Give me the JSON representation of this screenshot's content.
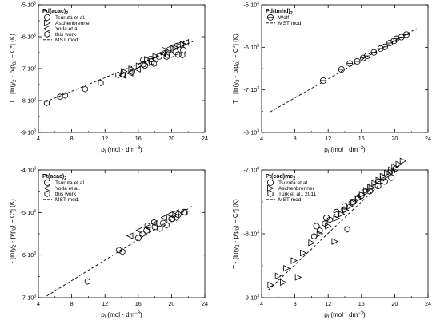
{
  "chart_data": [
    {
      "type": "scatter",
      "id": "pd-acac",
      "compound": "Pd(acac)",
      "compound_sub": "2",
      "xlim": [
        4,
        24
      ],
      "ylim": [
        -9000,
        -5000
      ],
      "xticks": [
        4,
        8,
        12,
        16,
        20,
        24
      ],
      "yticks": [
        -9000,
        -8000,
        -7000,
        -6000,
        -5000
      ],
      "ytick_labels": [
        "-9·10³",
        "-8·10³",
        "-7·10³",
        "-6·10³",
        "-5·10³"
      ],
      "legend_position": "top-left",
      "xlabel": "ρl (mol · dm⁻³)",
      "ylabel": "T · [ln(y2 · p/p0) − C*] (K)",
      "series": [
        {
          "name": "Tsuruta et al.",
          "marker": "circle",
          "points": [
            [
              16.6,
              -6730
            ],
            [
              17.5,
              -6700
            ],
            [
              18.5,
              -6620
            ],
            [
              19.5,
              -6560
            ],
            [
              20.5,
              -6480
            ],
            [
              21.4,
              -6420
            ],
            [
              20.8,
              -6560
            ],
            [
              16.8,
              -6900
            ],
            [
              17.6,
              -6780
            ]
          ]
        },
        {
          "name": "Aschenbrenner",
          "marker": "triangle-right",
          "points": [
            [
              14.3,
              -7090
            ],
            [
              15.2,
              -7010
            ],
            [
              16.1,
              -6920
            ],
            [
              17.1,
              -6710
            ],
            [
              18.1,
              -6610
            ],
            [
              19.2,
              -6420
            ],
            [
              20.5,
              -6350
            ],
            [
              21.4,
              -6250
            ]
          ]
        },
        {
          "name": "Yoda et al.",
          "marker": "triangle-left",
          "points": [
            [
              14.1,
              -7210
            ],
            [
              15.0,
              -7140
            ],
            [
              15.9,
              -7020
            ],
            [
              17.0,
              -6820
            ],
            [
              18.0,
              -6700
            ],
            [
              18.9,
              -6510
            ],
            [
              19.6,
              -6380
            ],
            [
              20.3,
              -6290
            ],
            [
              21.1,
              -6220
            ],
            [
              21.7,
              -6180
            ]
          ]
        },
        {
          "name": "this work",
          "marker": "hexagon",
          "points": [
            [
              5.0,
              -8070
            ],
            [
              6.6,
              -7880
            ],
            [
              7.2,
              -7840
            ],
            [
              9.6,
              -7640
            ],
            [
              11.5,
              -7450
            ],
            [
              13.6,
              -7200
            ],
            [
              14.1,
              -7180
            ],
            [
              15.3,
              -7100
            ],
            [
              16.6,
              -6870
            ],
            [
              17.9,
              -6850
            ],
            [
              19.4,
              -6630
            ],
            [
              20.0,
              -6560
            ],
            [
              21.3,
              -6580
            ]
          ]
        }
      ],
      "model": {
        "name": "MST mod.",
        "line": [
          [
            4.8,
            -8050
          ],
          [
            22.6,
            -6150
          ]
        ]
      }
    },
    {
      "type": "scatter",
      "id": "pd-tmhd",
      "compound": "Pd(tmhd)",
      "compound_sub": "2",
      "xlim": [
        4,
        24
      ],
      "ylim": [
        -8000,
        -5000
      ],
      "xticks": [
        4,
        8,
        12,
        16,
        20,
        24
      ],
      "yticks": [
        -8000,
        -7000,
        -6000,
        -5000
      ],
      "ytick_labels": [
        "-8·10³",
        "-7·10³",
        "-6·10³",
        "-5·10³"
      ],
      "legend_position": "top-left",
      "xlabel": "ρl (mol · dm⁻³)",
      "ylabel": "T · [ln(y2 · p/p0) − C*] (K)",
      "series": [
        {
          "name": "Wolf",
          "marker": "circle-bar",
          "points": [
            [
              11.4,
              -6780
            ],
            [
              13.6,
              -6520
            ],
            [
              14.6,
              -6380
            ],
            [
              15.5,
              -6330
            ],
            [
              16.2,
              -6250
            ],
            [
              16.7,
              -6200
            ],
            [
              17.5,
              -6120
            ],
            [
              18.3,
              -6030
            ],
            [
              18.8,
              -5990
            ],
            [
              19.4,
              -5900
            ],
            [
              19.9,
              -5850
            ],
            [
              20.2,
              -5800
            ],
            [
              20.8,
              -5760
            ],
            [
              21.4,
              -5700
            ]
          ]
        }
      ],
      "model": {
        "name": "MST mod.",
        "line": [
          [
            5.0,
            -7520
          ],
          [
            22.6,
            -5560
          ]
        ]
      }
    },
    {
      "type": "scatter",
      "id": "pt-acac",
      "compound": "Pt(acac)",
      "compound_sub": "2",
      "xlim": [
        4,
        24
      ],
      "ylim": [
        -7000,
        -4000
      ],
      "xticks": [
        4,
        8,
        12,
        16,
        20,
        24
      ],
      "yticks": [
        -7000,
        -6000,
        -5000,
        -4000
      ],
      "ytick_labels": [
        "-7·10³",
        "-6·10³",
        "-5·10³",
        "-4·10³"
      ],
      "legend_position": "top-left",
      "xlabel": "ρl (mol · dm⁻³)",
      "ylabel": "T · [ln(y2 · p/p0) − C*] (K)",
      "series": [
        {
          "name": "Tsuruta et al.",
          "marker": "circle",
          "points": [
            [
              16.0,
              -5600
            ],
            [
              17.0,
              -5420
            ],
            [
              18.0,
              -5340
            ],
            [
              19.0,
              -5250
            ],
            [
              20.0,
              -5150
            ],
            [
              20.8,
              -5050
            ],
            [
              21.5,
              -4990
            ]
          ]
        },
        {
          "name": "Yoda et al.",
          "marker": "triangle-left",
          "points": [
            [
              15.0,
              -5550
            ],
            [
              16.1,
              -5420
            ],
            [
              17.1,
              -5350
            ],
            [
              18.0,
              -5260
            ],
            [
              19.1,
              -5120
            ],
            [
              19.8,
              -5050
            ],
            [
              20.5,
              -5000
            ]
          ]
        },
        {
          "name": "this work",
          "marker": "hexagon",
          "points": [
            [
              9.9,
              -6620
            ],
            [
              13.7,
              -5880
            ],
            [
              14.1,
              -5920
            ],
            [
              16.5,
              -5500
            ],
            [
              17.1,
              -5310
            ],
            [
              17.9,
              -5230
            ],
            [
              18.6,
              -5380
            ],
            [
              19.4,
              -5300
            ],
            [
              20.1,
              -5150
            ],
            [
              20.6,
              -5120
            ],
            [
              21.6,
              -5000
            ]
          ]
        }
      ],
      "model": {
        "name": "MST mod.",
        "line": [
          [
            5.0,
            -6960
          ],
          [
            22.6,
            -4840
          ]
        ]
      }
    },
    {
      "type": "scatter",
      "id": "pt-cod",
      "compound": "Pt(cod)me",
      "compound_sub": "2",
      "xlim": [
        4,
        24
      ],
      "ylim": [
        -9000,
        -7000
      ],
      "xticks": [
        4,
        8,
        12,
        16,
        20,
        24
      ],
      "yticks": [
        -9000,
        -8000,
        -7000
      ],
      "ytick_labels": [
        "-9·10³",
        "-8·10³",
        "-7·10³"
      ],
      "legend_position": "top-left",
      "xlabel": "ρl (mol · dm⁻³)",
      "ylabel": "T · [ln(y2 · p/p0) − C*] (K)",
      "series": [
        {
          "name": "Tsuruta et al.",
          "marker": "circle",
          "points": [
            [
              10.6,
              -7880
            ],
            [
              11.8,
              -7750
            ],
            [
              13.0,
              -7660
            ],
            [
              14.0,
              -7570
            ],
            [
              15.0,
              -7500
            ],
            [
              16.0,
              -7400
            ],
            [
              17.0,
              -7330
            ],
            [
              18.0,
              -7250
            ],
            [
              18.8,
              -7180
            ],
            [
              19.6,
              -7120
            ]
          ]
        },
        {
          "name": "Aschenbrenner",
          "marker": "triangle-right",
          "points": [
            [
              5.1,
              -8800
            ],
            [
              6.0,
              -8660
            ],
            [
              7.0,
              -8540
            ],
            [
              7.9,
              -8420
            ],
            [
              9.0,
              -8300
            ],
            [
              10.0,
              -8140
            ],
            [
              11.0,
              -8000
            ],
            [
              12.0,
              -7880
            ],
            [
              13.0,
              -7760
            ],
            [
              13.6,
              -7690
            ],
            [
              14.1,
              -7630
            ],
            [
              14.6,
              -7570
            ],
            [
              15.1,
              -7500
            ],
            [
              15.6,
              -7450
            ],
            [
              16.1,
              -7380
            ],
            [
              16.6,
              -7320
            ],
            [
              17.1,
              -7270
            ],
            [
              17.6,
              -7210
            ],
            [
              18.1,
              -7160
            ],
            [
              18.6,
              -7100
            ],
            [
              19.1,
              -7050
            ],
            [
              19.6,
              -7000
            ],
            [
              20.0,
              -6950
            ],
            [
              20.5,
              -6910
            ],
            [
              21.0,
              -6860
            ],
            [
              6.6,
              -8760
            ],
            [
              8.4,
              -8680
            ],
            [
              12.8,
              -8120
            ]
          ]
        },
        {
          "name": "Türk et al., 2011",
          "marker": "hexagon",
          "points": [
            [
              10.3,
              -8040
            ],
            [
              11.0,
              -7950
            ],
            [
              11.6,
              -7840
            ],
            [
              12.2,
              -7780
            ],
            [
              13.0,
              -7700
            ],
            [
              13.9,
              -7620
            ],
            [
              14.3,
              -7930
            ],
            [
              14.8,
              -7520
            ],
            [
              15.6,
              -7430
            ],
            [
              16.4,
              -7340
            ],
            [
              17.2,
              -7260
            ],
            [
              18.0,
              -7180
            ],
            [
              18.6,
              -7120
            ],
            [
              19.4,
              -7040
            ],
            [
              20.1,
              -6980
            ]
          ]
        }
      ],
      "model": {
        "name": "MST mod.",
        "line": [
          [
            4.8,
            -8880
          ],
          [
            21.0,
            -6880
          ]
        ]
      }
    }
  ]
}
